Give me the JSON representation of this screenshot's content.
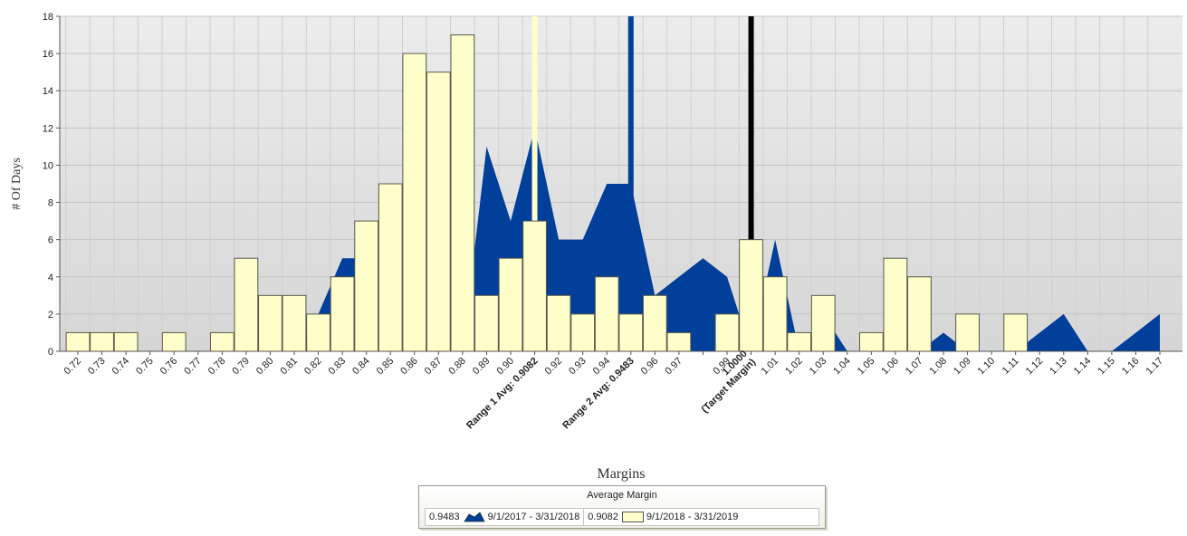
{
  "chart_data": {
    "type": "bar",
    "ylabel": "# Of Days",
    "xlabel": "Margins",
    "ylim": [
      0,
      18
    ],
    "yticks": [
      0,
      2,
      4,
      6,
      8,
      10,
      12,
      14,
      16,
      18
    ],
    "categories": [
      "0.72",
      "0.73",
      "0.74",
      "0.75",
      "0.76",
      "0.77",
      "0.78",
      "0.79",
      "0.80",
      "0.81",
      "0.82",
      "0.83",
      "0.84",
      "0.85",
      "0.86",
      "0.87",
      "0.88",
      "0.89",
      "0.90",
      "0.9082",
      "0.92",
      "0.93",
      "0.94",
      "0.9483",
      "0.96",
      "0.97",
      "0.98",
      "0.99",
      "1.0000",
      "1.01",
      "1.02",
      "1.03",
      "1.04",
      "1.05",
      "1.06",
      "1.07",
      "1.08",
      "1.09",
      "1.10",
      "1.11",
      "1.12",
      "1.13",
      "1.14",
      "1.15",
      "1.16",
      "1.17"
    ],
    "category_labels": {
      "0.9082": "Range 1 Avg: 0.9082",
      "0.9483": "Range 2 Avg: 0.9483",
      "1.0000": "1.0000 (Target Margin)",
      "0.98": ""
    },
    "series": [
      {
        "name": "9/1/2017 - 3/31/2018",
        "type": "area",
        "color": "#003f9a",
        "values": [
          0,
          0,
          0,
          0,
          0,
          0,
          0,
          0,
          0,
          0,
          2,
          5,
          5,
          0,
          0,
          0,
          0,
          11,
          7,
          12,
          6,
          6,
          9,
          9,
          3,
          4,
          5,
          4,
          0,
          6,
          0,
          2,
          0,
          0,
          0,
          0,
          1,
          0,
          0,
          0,
          1,
          2,
          0,
          0,
          1,
          2
        ]
      },
      {
        "name": "9/1/2018 - 3/31/2019",
        "type": "bar",
        "color": "#ffffcc",
        "values": [
          1,
          1,
          1,
          0,
          1,
          0,
          1,
          5,
          3,
          3,
          2,
          4,
          7,
          9,
          16,
          15,
          17,
          3,
          5,
          7,
          3,
          2,
          4,
          2,
          3,
          1,
          0,
          2,
          6,
          4,
          1,
          3,
          0,
          1,
          5,
          4,
          0,
          2,
          0,
          2,
          0,
          0,
          0,
          0,
          0,
          0
        ]
      }
    ],
    "reference_lines": [
      {
        "category": "0.9082",
        "color": "#ffffcc"
      },
      {
        "category": "0.9483",
        "color": "#003f9a"
      },
      {
        "category": "1.0000",
        "color": "#000000"
      }
    ],
    "grid": true,
    "legend": {
      "title": "Average Margin",
      "placement": "bottom",
      "entries": [
        {
          "value": "0.9483",
          "label": "9/1/2017 - 3/31/2018"
        },
        {
          "value": "0.9082",
          "label": "9/1/2018 - 3/31/2019"
        }
      ]
    }
  }
}
